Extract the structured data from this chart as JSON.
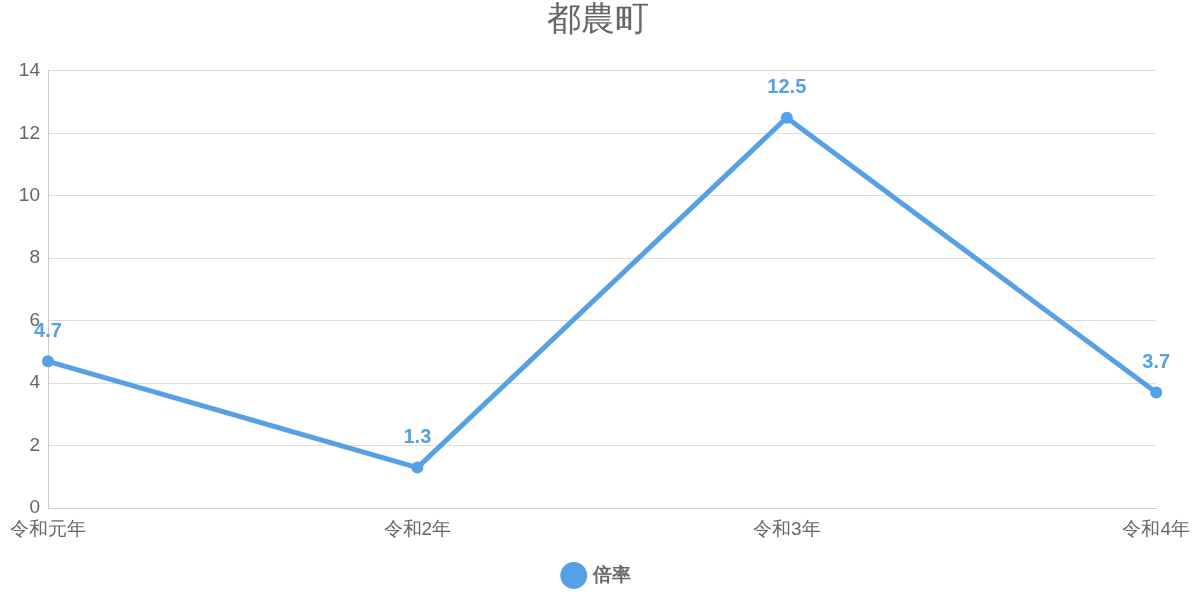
{
  "chart_data": {
    "type": "line",
    "title": "都農町",
    "categories": [
      "令和元年",
      "令和2年",
      "令和3年",
      "令和4年"
    ],
    "series": [
      {
        "name": "倍率",
        "color": "#56a0e6",
        "values": [
          4.7,
          1.3,
          12.5,
          3.7
        ]
      }
    ],
    "ylim": [
      0,
      14
    ],
    "yticks": [
      0,
      2,
      4,
      6,
      8,
      10,
      12,
      14
    ],
    "grid": "y",
    "legend": "bottom",
    "marker": "circle",
    "line_style": "solid",
    "data_labels": true
  }
}
